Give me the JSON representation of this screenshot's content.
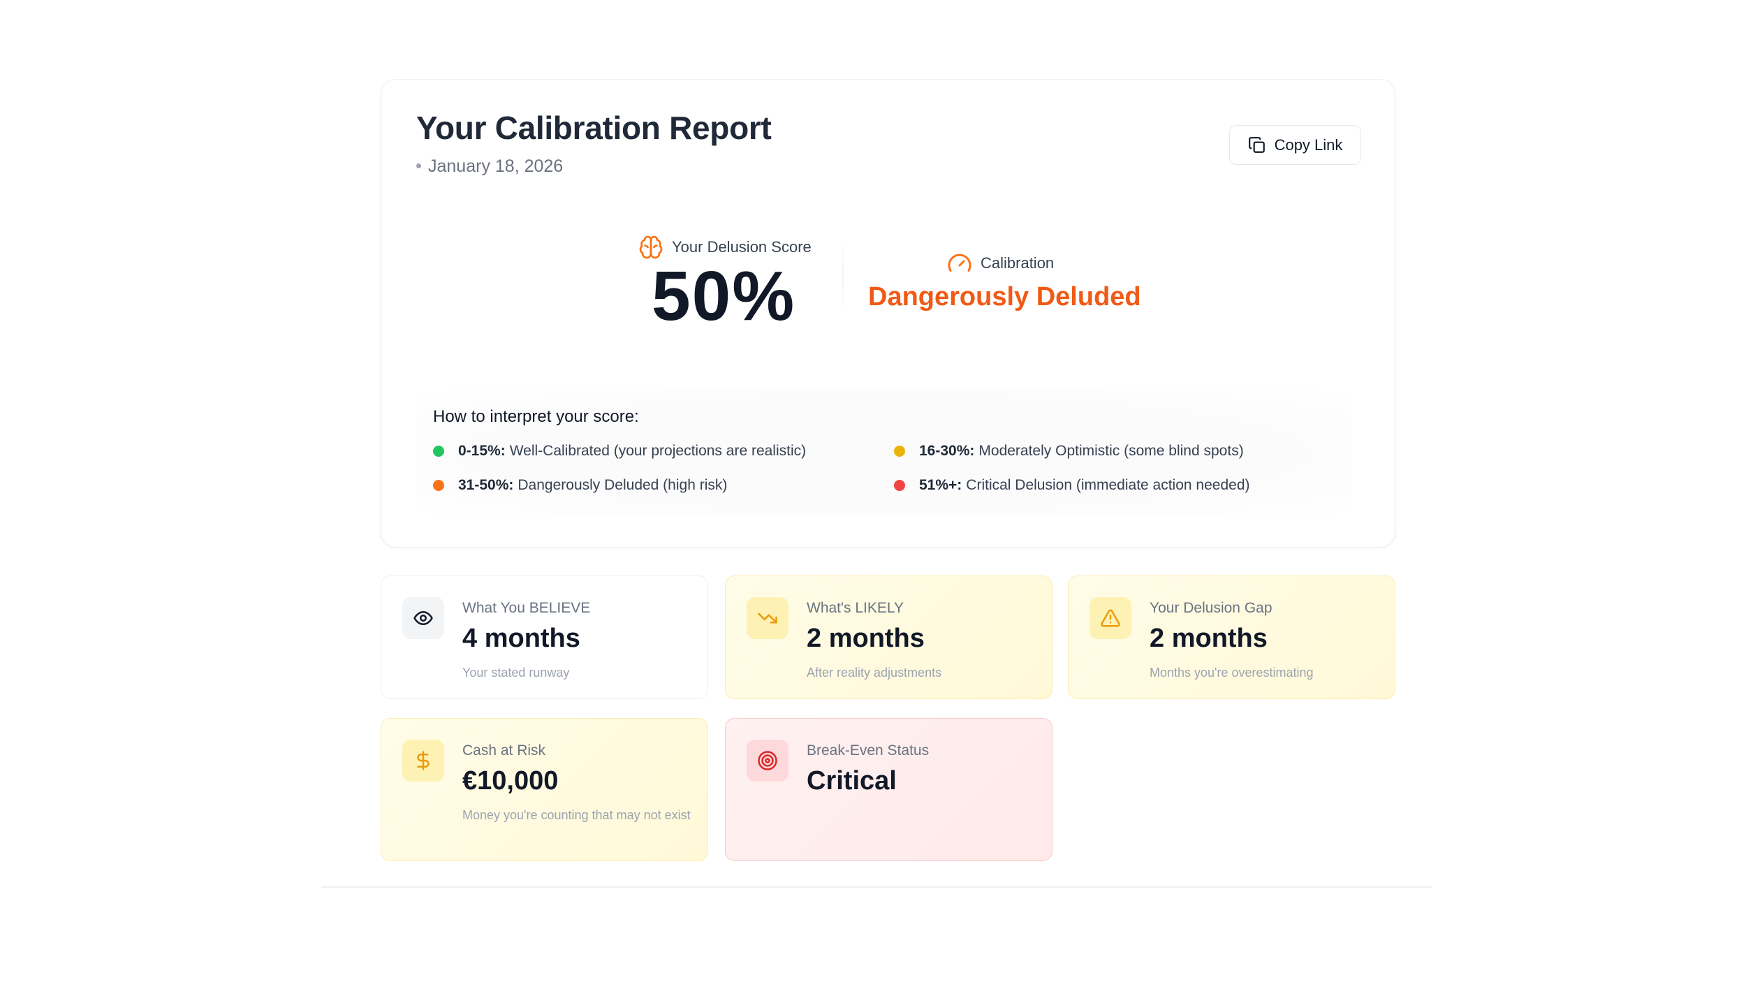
{
  "report": {
    "title": "Your Calibration Report",
    "date": "January 18, 2026",
    "copy_link_label": "Copy Link"
  },
  "score": {
    "label": "Your Delusion Score",
    "value": "50%",
    "icon": "brain-icon"
  },
  "calibration": {
    "label": "Calibration",
    "value": "Dangerously Deluded",
    "icon": "gauge-icon",
    "color": "#f05a16"
  },
  "interpret": {
    "title": "How to interpret your score:",
    "items": [
      {
        "range": "0-15%:",
        "text": "Well-Calibrated (your projections are realistic)",
        "color": "#22c55e"
      },
      {
        "range": "16-30%:",
        "text": "Moderately Optimistic (some blind spots)",
        "color": "#eab308"
      },
      {
        "range": "31-50%:",
        "text": "Dangerously Deluded (high risk)",
        "color": "#f97316"
      },
      {
        "range": "51%+:",
        "text": "Critical Delusion (immediate action needed)",
        "color": "#ef4444"
      }
    ]
  },
  "metrics": [
    {
      "label": "What You BELIEVE",
      "value": "4 months",
      "sub": "Your stated runway",
      "icon": "eye-icon"
    },
    {
      "label": "What's LIKELY",
      "value": "2 months",
      "sub": "After reality adjustments",
      "icon": "trending-down-icon"
    },
    {
      "label": "Your Delusion Gap",
      "value": "2 months",
      "sub": "Months you're overestimating",
      "icon": "warning-icon"
    },
    {
      "label": "Cash at Risk",
      "value": "€10,000",
      "sub": "Money you're counting that may not exist",
      "icon": "dollar-icon"
    },
    {
      "label": "Break-Even Status",
      "value": "Critical",
      "sub": "",
      "icon": "target-icon"
    }
  ]
}
